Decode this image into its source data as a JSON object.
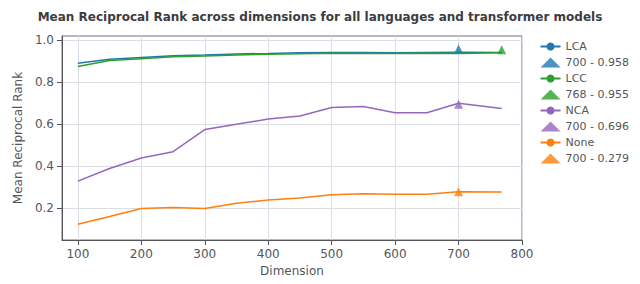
{
  "chart_data": {
    "type": "line",
    "title": "Mean Reciprocal Rank across dimensions for all languages and transformer models",
    "xlabel": "Dimension",
    "ylabel": "Mean Reciprocal Rank",
    "xlim": [
      75,
      800
    ],
    "ylim": [
      0.05,
      1.02
    ],
    "xticks": [
      100,
      200,
      300,
      400,
      500,
      600,
      700,
      800
    ],
    "yticks": [
      0.2,
      0.4,
      0.6,
      0.8,
      {
        "value": 1.0,
        "label": "1.0"
      }
    ],
    "grid": true,
    "legend": "right",
    "x": [
      100,
      150,
      200,
      250,
      300,
      350,
      400,
      450,
      500,
      550,
      600,
      650,
      700,
      768
    ],
    "series": [
      {
        "name": "LCA",
        "type": "line",
        "color": "#1f77b4",
        "values": [
          0.89,
          0.91,
          0.918,
          0.926,
          0.93,
          0.935,
          0.937,
          0.94,
          0.942,
          0.942,
          0.94,
          0.942,
          0.943,
          0.942
        ]
      },
      {
        "name": "700 - 0.958",
        "type": "scatter",
        "marker": "triangle",
        "color": "#1f77b4",
        "x": [
          700
        ],
        "values": [
          0.958
        ]
      },
      {
        "name": "LCC",
        "type": "line",
        "color": "#2ca02c",
        "values": [
          0.875,
          0.903,
          0.912,
          0.921,
          0.925,
          0.93,
          0.933,
          0.936,
          0.938,
          0.937,
          0.937,
          0.938,
          0.937,
          0.94
        ]
      },
      {
        "name": "768 - 0.955",
        "type": "scatter",
        "marker": "triangle",
        "color": "#2ca02c",
        "x": [
          768
        ],
        "values": [
          0.955
        ]
      },
      {
        "name": "NCA",
        "type": "line",
        "color": "#9467bd",
        "values": [
          0.33,
          0.39,
          0.44,
          0.47,
          0.575,
          0.6,
          0.625,
          0.64,
          0.68,
          0.685,
          0.655,
          0.655,
          0.7,
          0.675
        ]
      },
      {
        "name": "700 - 0.696",
        "type": "scatter",
        "marker": "triangle",
        "color": "#9467bd",
        "x": [
          700
        ],
        "values": [
          0.696
        ]
      },
      {
        "name": "None",
        "type": "line",
        "color": "#ff7f0e",
        "values": [
          0.125,
          0.162,
          0.2,
          0.205,
          0.2,
          0.225,
          0.24,
          0.25,
          0.265,
          0.27,
          0.268,
          0.268,
          0.28,
          0.278
        ]
      },
      {
        "name": "700 - 0.279",
        "type": "scatter",
        "marker": "triangle",
        "color": "#ff7f0e",
        "x": [
          700
        ],
        "values": [
          0.279
        ]
      }
    ]
  }
}
